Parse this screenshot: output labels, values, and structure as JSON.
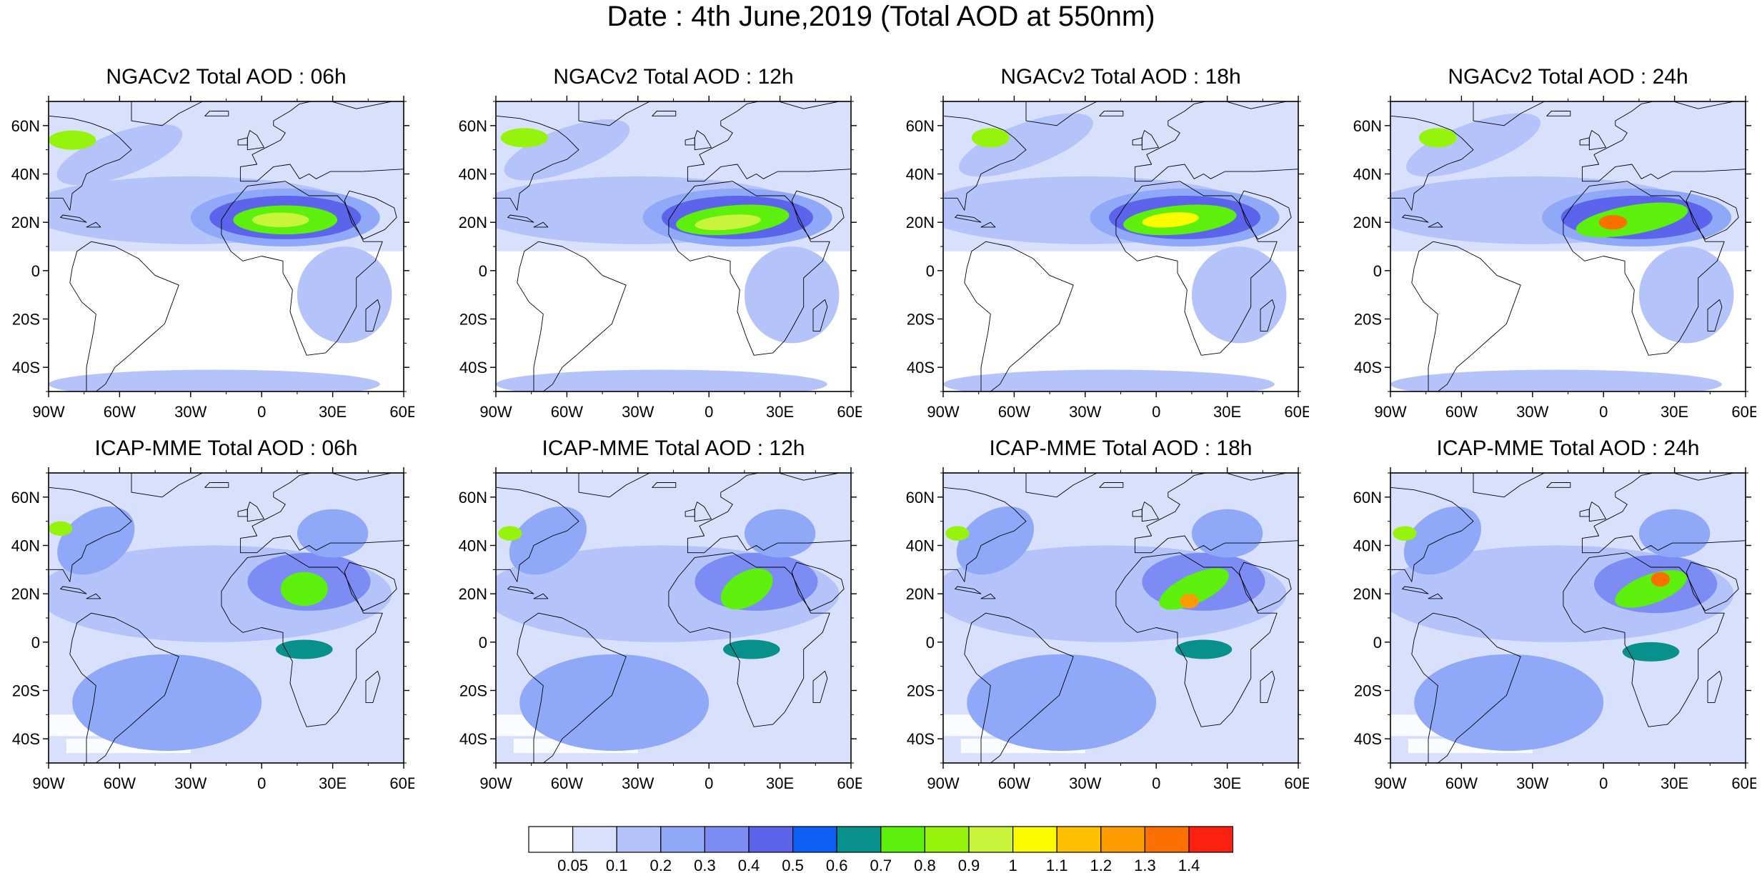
{
  "title": "Date : 4th June,2019 (Total AOD at 550nm)",
  "panels": [
    {
      "model": "NGACv2",
      "title": "NGACv2 Total AOD : 06h",
      "lead": "06h"
    },
    {
      "model": "NGACv2",
      "title": "NGACv2 Total AOD : 12h",
      "lead": "12h"
    },
    {
      "model": "NGACv2",
      "title": "NGACv2 Total AOD : 18h",
      "lead": "18h"
    },
    {
      "model": "NGACv2",
      "title": "NGACv2 Total AOD : 24h",
      "lead": "24h"
    },
    {
      "model": "ICAP-MME",
      "title": "ICAP-MME Total AOD : 06h",
      "lead": "06h"
    },
    {
      "model": "ICAP-MME",
      "title": "ICAP-MME Total AOD : 12h",
      "lead": "12h"
    },
    {
      "model": "ICAP-MME",
      "title": "ICAP-MME Total AOD : 18h",
      "lead": "18h"
    },
    {
      "model": "ICAP-MME",
      "title": "ICAP-MME Total AOD : 24h",
      "lead": "24h"
    }
  ],
  "map_extent": {
    "lon": [
      -90,
      60
    ],
    "lat": [
      -50,
      70
    ]
  },
  "lat_ticks": [
    {
      "value": 60,
      "label": "60N"
    },
    {
      "value": 40,
      "label": "40N"
    },
    {
      "value": 20,
      "label": "20N"
    },
    {
      "value": 0,
      "label": "0"
    },
    {
      "value": -20,
      "label": "20S"
    },
    {
      "value": -40,
      "label": "40S"
    }
  ],
  "lon_ticks": [
    {
      "value": -90,
      "label": "90W"
    },
    {
      "value": -60,
      "label": "60W"
    },
    {
      "value": -30,
      "label": "30W"
    },
    {
      "value": 0,
      "label": "0"
    },
    {
      "value": 30,
      "label": "30E"
    },
    {
      "value": 60,
      "label": "60E"
    }
  ],
  "colorbar": {
    "levels": [
      "0.05",
      "0.1",
      "0.2",
      "0.3",
      "0.4",
      "0.5",
      "0.6",
      "0.7",
      "0.8",
      "0.9",
      "1",
      "1.1",
      "1.2",
      "1.3",
      "1.4"
    ],
    "colors": [
      "#ffffff",
      "#d8e0fc",
      "#b4c4fa",
      "#90a8f8",
      "#7c8cf4",
      "#5c64ec",
      "#0c5ef4",
      "#08908c",
      "#5cf00c",
      "#96f40c",
      "#c8f43c",
      "#fcfc00",
      "#fcc000",
      "#fc9c00",
      "#fc7000",
      "#fc2010"
    ]
  },
  "colors": {
    "ocean_background": "#d8e0fc",
    "coastline": "#000000"
  }
}
